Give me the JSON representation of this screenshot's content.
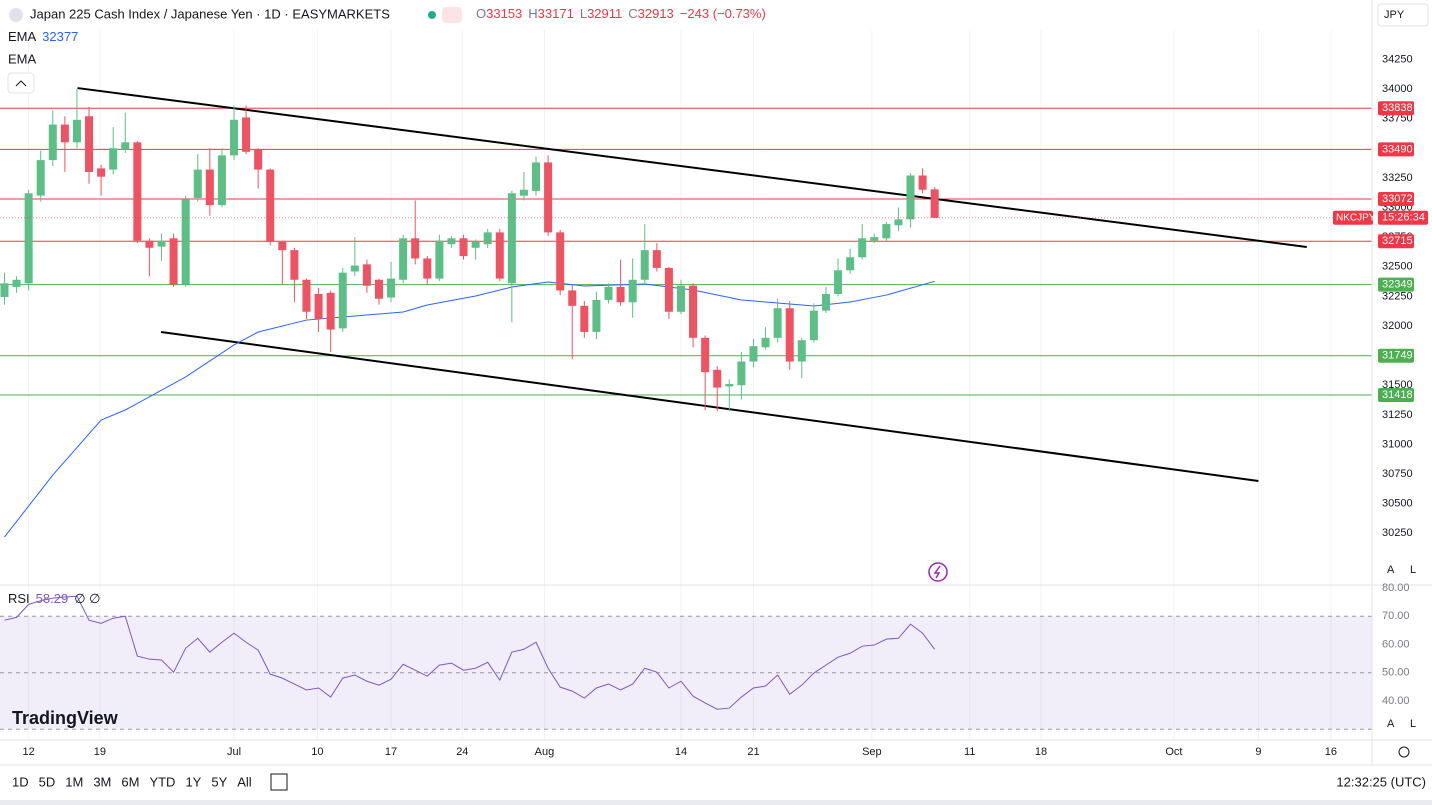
{
  "header": {
    "title": "Japan 225 Cash Index / Japanese Yen · 1D · EASYMARKETS",
    "ohlc_labels": [
      "O",
      "H",
      "L",
      "C"
    ],
    "change_label": "−243 (−0.73%)",
    "currency": "JPY",
    "ema_label": "EMA",
    "ema2_label": "EMA",
    "rsi_label": "RSI",
    "rsi_extra": "∅ ∅",
    "symbol_short": "NKCJPY",
    "countdown": "15:26:34",
    "logo": "TradingView"
  },
  "toolbar": {
    "ranges": [
      "1D",
      "5D",
      "1M",
      "3M",
      "6M",
      "YTD",
      "1Y",
      "5Y",
      "All"
    ],
    "clock": "12:32:25 (UTC)",
    "scale_buttons": [
      "A",
      "L"
    ]
  },
  "chart_data": {
    "type": "candlestick",
    "up_color": "#5cbf86",
    "down_color": "#ef5362",
    "grid": true,
    "ylim": [
      29814,
      34498
    ],
    "yticks": [
      30250,
      30500,
      30750,
      31000,
      31250,
      31500,
      31750,
      32000,
      32250,
      32500,
      32750,
      33000,
      33250,
      33500,
      33750,
      34000,
      34250
    ],
    "xlim": [
      -0.37,
      113.2
    ],
    "xticks": [
      {
        "value": 2.0,
        "label": "12"
      },
      {
        "value": 7.9,
        "label": "19"
      },
      {
        "value": 19.0,
        "label": "Jul"
      },
      {
        "value": 25.9,
        "label": "10"
      },
      {
        "value": 32.0,
        "label": "17"
      },
      {
        "value": 37.9,
        "label": "24"
      },
      {
        "value": 44.7,
        "label": "Aug"
      },
      {
        "value": 56.0,
        "label": "14"
      },
      {
        "value": 62.0,
        "label": "21"
      },
      {
        "value": 71.8,
        "label": "Sep"
      },
      {
        "value": 79.9,
        "label": "11"
      },
      {
        "value": 85.8,
        "label": "18"
      },
      {
        "value": 96.8,
        "label": "Oct"
      },
      {
        "value": 103.8,
        "label": "9"
      },
      {
        "value": 109.8,
        "label": "16"
      }
    ],
    "candles": {
      "open": [
        32245,
        32330,
        32360,
        33100,
        33400,
        33700,
        33550,
        33770,
        33330,
        33320,
        33490,
        33550,
        32720,
        32670,
        32740,
        32350,
        33080,
        33320,
        33020,
        33440,
        33760,
        33490,
        33320,
        32710,
        32640,
        32390,
        32270,
        32280,
        31980,
        32460,
        32520,
        32390,
        32240,
        32390,
        32740,
        32570,
        32400,
        32690,
        32740,
        32660,
        32690,
        32790,
        32360,
        33100,
        33140,
        33380,
        32790,
        32300,
        32170,
        31950,
        32220,
        32330,
        32200,
        32390,
        32640,
        32490,
        32120,
        32340,
        31900,
        31630,
        31490,
        31500,
        31700,
        31820,
        31900,
        32150,
        31700,
        31880,
        32130,
        32270,
        32470,
        32580,
        32720,
        32740,
        32850,
        32900,
        33270,
        33153
      ],
      "high": [
        32450,
        32420,
        33150,
        33480,
        33820,
        33770,
        34000,
        33850,
        33360,
        33680,
        33800,
        33560,
        32740,
        32780,
        32780,
        33100,
        33450,
        33500,
        33500,
        33860,
        33860,
        33500,
        33330,
        32720,
        32660,
        32400,
        32320,
        32300,
        32490,
        32750,
        32560,
        32400,
        32540,
        32770,
        33060,
        32590,
        32770,
        32760,
        32770,
        32730,
        32820,
        32820,
        33140,
        33300,
        33430,
        33440,
        32810,
        32350,
        32210,
        32290,
        32360,
        32560,
        32570,
        32860,
        32700,
        32500,
        32390,
        32360,
        31920,
        31660,
        31550,
        31780,
        31890,
        31990,
        32230,
        32210,
        31900,
        32190,
        32330,
        32570,
        32650,
        32860,
        32780,
        32880,
        33000,
        33290,
        33330,
        33171
      ],
      "low": [
        32180,
        32280,
        32300,
        33050,
        33350,
        33300,
        33500,
        33200,
        33100,
        33280,
        33460,
        32700,
        32420,
        32550,
        32330,
        32330,
        33050,
        32930,
        33000,
        33400,
        33450,
        33160,
        32680,
        32350,
        32200,
        32060,
        31950,
        31780,
        31950,
        32420,
        32280,
        32180,
        32200,
        32360,
        32520,
        32350,
        32380,
        32660,
        32560,
        32560,
        32660,
        32380,
        32030,
        33060,
        33100,
        32760,
        32260,
        31720,
        31900,
        31890,
        32190,
        32170,
        32070,
        32350,
        32460,
        32060,
        32100,
        31820,
        31290,
        31280,
        31280,
        31380,
        31650,
        31800,
        31860,
        31630,
        31560,
        31860,
        32110,
        32250,
        32440,
        32560,
        32700,
        32720,
        32800,
        32830,
        33120,
        32911
      ],
      "close": [
        32360,
        32390,
        33120,
        33400,
        33700,
        33550,
        33740,
        33300,
        33260,
        33500,
        33550,
        32720,
        32660,
        32720,
        32350,
        33070,
        33320,
        33020,
        33440,
        33740,
        33470,
        33320,
        32710,
        32640,
        32390,
        32120,
        32060,
        31970,
        32450,
        32510,
        32340,
        32230,
        32400,
        32740,
        32570,
        32400,
        32720,
        32740,
        32590,
        32710,
        32790,
        32400,
        33120,
        33150,
        33380,
        32790,
        32300,
        32170,
        31950,
        32220,
        32330,
        32200,
        32390,
        32640,
        32490,
        32120,
        32340,
        31900,
        31610,
        31480,
        31510,
        31700,
        31830,
        31900,
        32150,
        31700,
        31880,
        32130,
        32270,
        32470,
        32580,
        32740,
        32750,
        32860,
        32900,
        33270,
        33150,
        32913
      ]
    },
    "ema": {
      "color": "#2962ff",
      "x": [
        0,
        4,
        8,
        10,
        15,
        19,
        21,
        25,
        29,
        33,
        35,
        39,
        42,
        45,
        48,
        53,
        57,
        61,
        64,
        67,
        70,
        73,
        77
      ],
      "values": [
        30219,
        30742,
        31206,
        31291,
        31570,
        31840,
        31949,
        32050,
        32084,
        32118,
        32177,
        32253,
        32329,
        32371,
        32337,
        32354,
        32304,
        32219,
        32194,
        32169,
        32202,
        32261,
        32377
      ]
    },
    "trendlines": [
      {
        "color": "#000000",
        "x": [
          6.05,
          107.8
        ],
        "values": [
          34008,
          32667
        ]
      },
      {
        "color": "#000000",
        "x": [
          12.96,
          103.8
        ],
        "values": [
          31949,
          30692
        ]
      }
    ],
    "levels": [
      {
        "value": 33838,
        "color": "#f23645"
      },
      {
        "value": 33490,
        "color": "#f23645"
      },
      {
        "value": 33072,
        "color": "#f23645"
      },
      {
        "value": 32715,
        "color": "#f23645"
      },
      {
        "value": 32349,
        "color": "#4caf50"
      },
      {
        "value": 31749,
        "color": "#4caf50"
      },
      {
        "value": 31418,
        "color": "#4caf50"
      }
    ],
    "rsi": {
      "color": "#7e57c2",
      "ylim": [
        26.2,
        80.7
      ],
      "band": [
        30,
        70
      ],
      "yticks": [
        {
          "value": 40,
          "label": "40.00"
        },
        {
          "value": 50,
          "label": "50.00"
        },
        {
          "value": 60,
          "label": "60.00"
        },
        {
          "value": 70,
          "label": "70.00"
        },
        {
          "value": 80,
          "label": "80.00"
        }
      ],
      "values": [
        68.6,
        69.6,
        74.2,
        75.5,
        76.4,
        76.8,
        77.1,
        68.6,
        67.5,
        69.3,
        70,
        55.9,
        54.8,
        54.5,
        50.2,
        58.7,
        62.2,
        57.3,
        60.8,
        64.0,
        60.8,
        58.0,
        49.5,
        48.1,
        46.0,
        43.9,
        44.6,
        41.4,
        48.1,
        49.2,
        47.0,
        45.6,
        47.7,
        53.0,
        50.9,
        48.8,
        52.7,
        53.4,
        50.9,
        51.6,
        53.7,
        47.4,
        57.3,
        58.3,
        60.8,
        51.6,
        44.9,
        43.5,
        41.0,
        44.6,
        46.0,
        43.9,
        46.0,
        51.6,
        50.2,
        44.6,
        47.0,
        41.7,
        39.3,
        37.1,
        37.5,
        41.4,
        44.6,
        45.3,
        49.2,
        42.4,
        45.6,
        49.9,
        52.7,
        55.5,
        56.9,
        59.4,
        59.8,
        61.9,
        62.2,
        67.2,
        64.0,
        58.29
      ]
    }
  }
}
